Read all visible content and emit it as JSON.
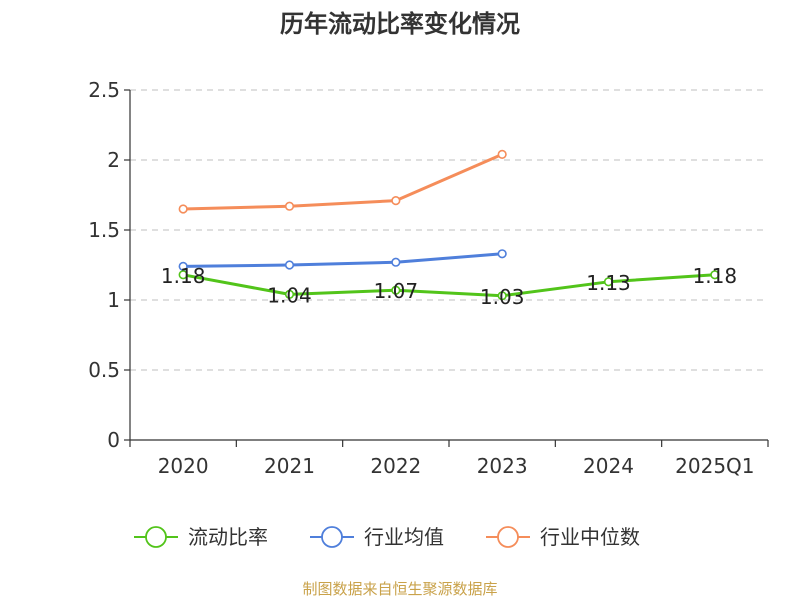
{
  "chart_data": {
    "type": "line",
    "title": "历年流动比率变化情况",
    "categories": [
      "2020",
      "2021",
      "2022",
      "2023",
      "2024",
      "2025Q1"
    ],
    "ylim": [
      0,
      2.5
    ],
    "yticks": [
      0,
      0.5,
      1,
      1.5,
      2,
      2.5
    ],
    "ytick_labels": [
      "0",
      "0.5",
      "1",
      "1.5",
      "2",
      "2.5"
    ],
    "grid": true,
    "legend_position": "bottom",
    "series": [
      {
        "name": "流动比率",
        "color": "#52c41a",
        "values": [
          1.18,
          1.04,
          1.07,
          1.03,
          1.13,
          1.18
        ],
        "labels": [
          "1.18",
          "1.04",
          "1.07",
          "1.03",
          "1.13",
          "1.18"
        ]
      },
      {
        "name": "行业均值",
        "color": "#4f7fdb",
        "values": [
          1.24,
          1.25,
          1.27,
          1.33,
          null,
          null
        ]
      },
      {
        "name": "行业中位数",
        "color": "#f58d5a",
        "values": [
          1.65,
          1.67,
          1.71,
          2.04,
          null,
          null
        ]
      }
    ]
  },
  "source": "制图数据来自恒生聚源数据库"
}
